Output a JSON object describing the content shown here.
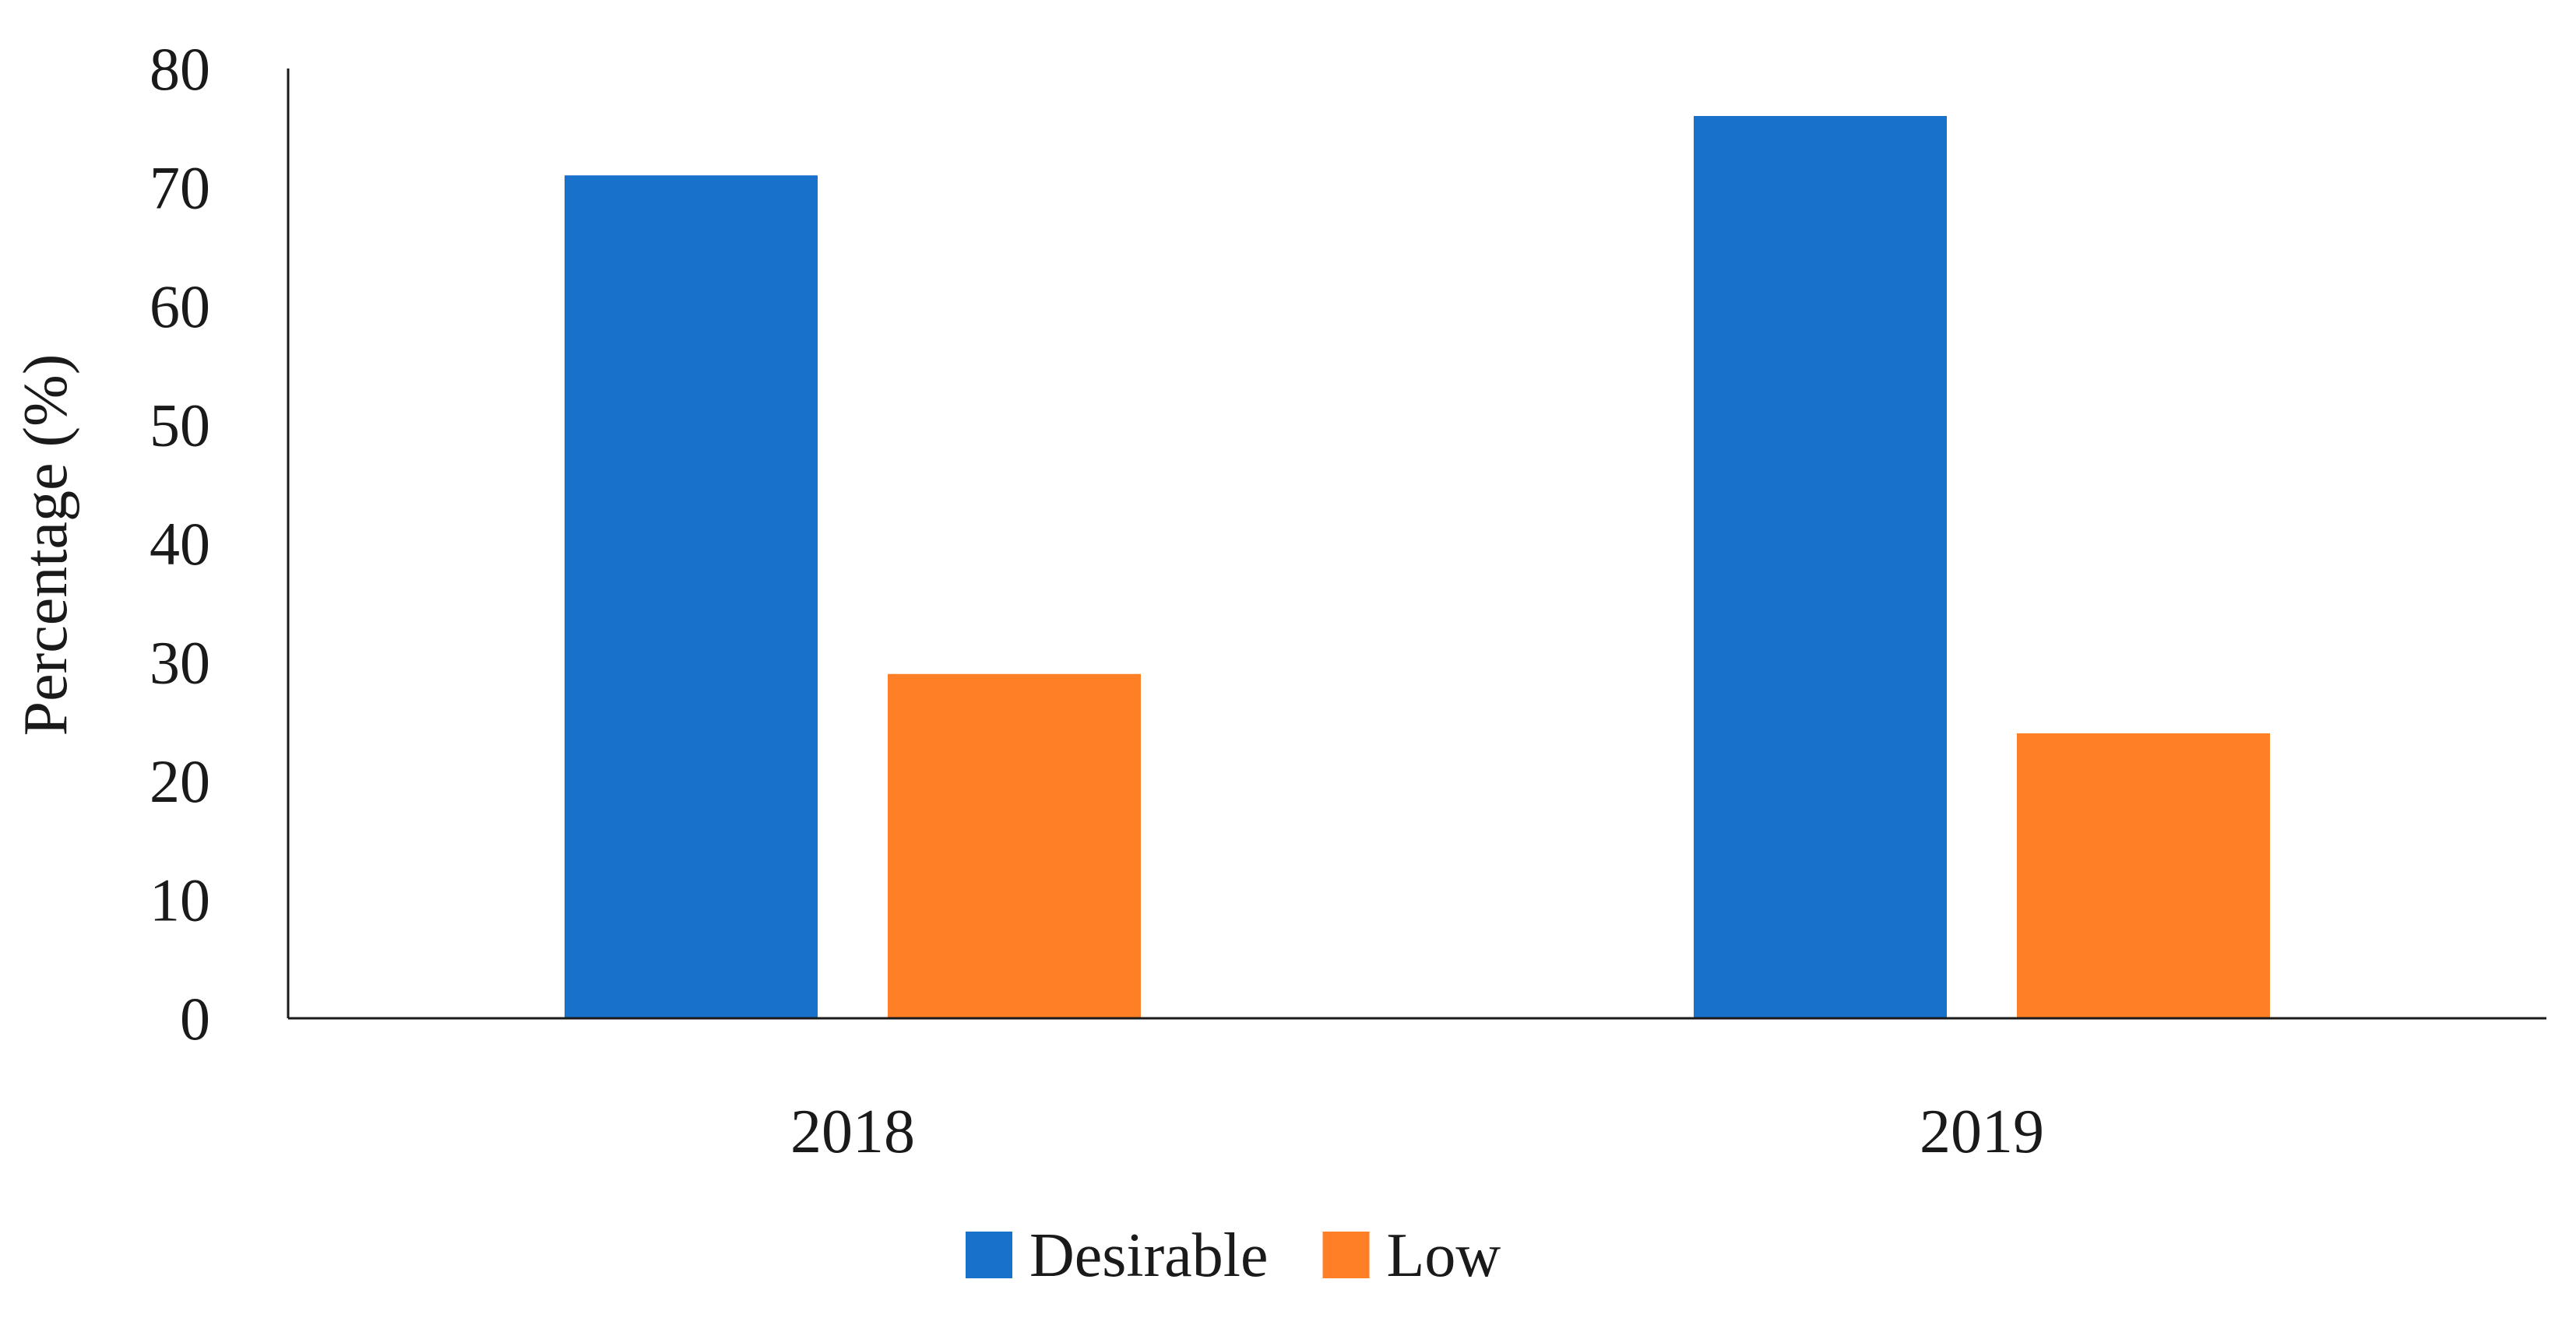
{
  "chart_data": {
    "type": "bar",
    "title": "",
    "xlabel": "",
    "ylabel": "Percentage (%)",
    "categories": [
      "2018",
      "2019"
    ],
    "series": [
      {
        "name": "Desirable",
        "color": "#1872CC",
        "values": [
          71,
          76
        ]
      },
      {
        "name": "Low",
        "color": "#FF7F27",
        "values": [
          29,
          24
        ]
      }
    ],
    "ylim": [
      0,
      80
    ],
    "yticks": [
      0,
      10,
      20,
      30,
      40,
      50,
      60,
      70,
      80
    ],
    "grid": false,
    "legend_position": "bottom"
  }
}
